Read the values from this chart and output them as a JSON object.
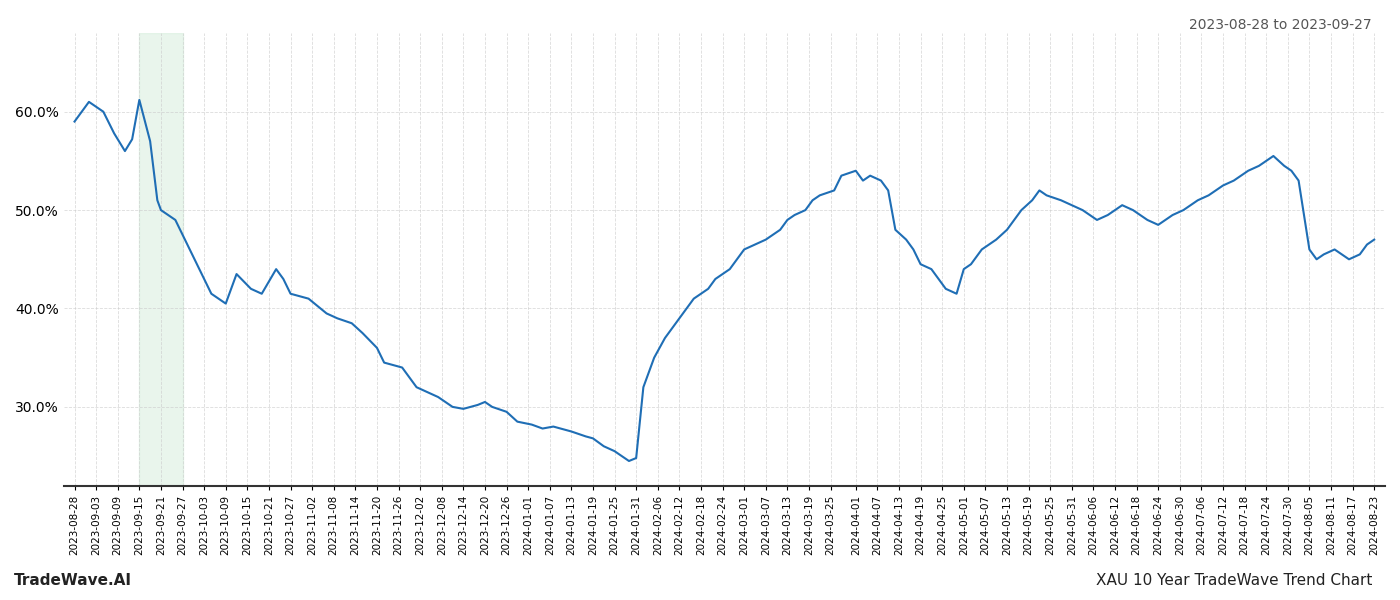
{
  "title_right": "2023-08-28 to 2023-09-27",
  "footer_left": "TradeWave.AI",
  "footer_right": "XAU 10 Year TradeWave Trend Chart",
  "line_color": "#1f6eb5",
  "line_width": 1.5,
  "shade_color": "#d4edda",
  "shade_alpha": 0.5,
  "shade_start": "2023-09-15",
  "shade_end": "2023-09-27",
  "ylim_min": 0.22,
  "ylim_max": 0.68,
  "yticks": [
    0.3,
    0.4,
    0.5,
    0.6
  ],
  "background_color": "#ffffff",
  "grid_color": "#cccccc",
  "dates": [
    "2023-08-28",
    "2023-09-01",
    "2023-09-05",
    "2023-09-08",
    "2023-09-11",
    "2023-09-13",
    "2023-09-15",
    "2023-09-18",
    "2023-09-20",
    "2023-09-21",
    "2023-09-25",
    "2023-09-29",
    "2023-10-03",
    "2023-10-05",
    "2023-10-09",
    "2023-10-12",
    "2023-10-16",
    "2023-10-19",
    "2023-10-23",
    "2023-10-25",
    "2023-10-27",
    "2023-11-01",
    "2023-11-06",
    "2023-11-09",
    "2023-11-13",
    "2023-11-16",
    "2023-11-20",
    "2023-11-22",
    "2023-11-27",
    "2023-12-01",
    "2023-12-04",
    "2023-12-07",
    "2023-12-11",
    "2023-12-14",
    "2023-12-18",
    "2023-12-20",
    "2023-12-22",
    "2023-12-26",
    "2023-12-29",
    "2024-01-02",
    "2024-01-05",
    "2024-01-08",
    "2024-01-10",
    "2024-01-13",
    "2024-01-17",
    "2024-01-19",
    "2024-01-22",
    "2024-01-25",
    "2024-01-29",
    "2024-01-31",
    "2024-02-02",
    "2024-02-05",
    "2024-02-08",
    "2024-02-12",
    "2024-02-14",
    "2024-02-16",
    "2024-02-20",
    "2024-02-22",
    "2024-02-26",
    "2024-02-28",
    "2024-03-01",
    "2024-03-04",
    "2024-03-07",
    "2024-03-11",
    "2024-03-13",
    "2024-03-15",
    "2024-03-18",
    "2024-03-20",
    "2024-03-22",
    "2024-03-26",
    "2024-03-28",
    "2024-04-01",
    "2024-04-03",
    "2024-04-05",
    "2024-04-08",
    "2024-04-10",
    "2024-04-12",
    "2024-04-15",
    "2024-04-17",
    "2024-04-19",
    "2024-04-22",
    "2024-04-24",
    "2024-04-26",
    "2024-04-29",
    "2024-05-01",
    "2024-05-03",
    "2024-05-06",
    "2024-05-08",
    "2024-05-10",
    "2024-05-13",
    "2024-05-15",
    "2024-05-17",
    "2024-05-20",
    "2024-05-22",
    "2024-05-24",
    "2024-05-28",
    "2024-05-31",
    "2024-06-03",
    "2024-06-05",
    "2024-06-07",
    "2024-06-10",
    "2024-06-12",
    "2024-06-14",
    "2024-06-17",
    "2024-06-19",
    "2024-06-21",
    "2024-06-24",
    "2024-06-26",
    "2024-06-28",
    "2024-07-01",
    "2024-07-03",
    "2024-07-05",
    "2024-07-08",
    "2024-07-10",
    "2024-07-12",
    "2024-07-15",
    "2024-07-17",
    "2024-07-19",
    "2024-07-22",
    "2024-07-24",
    "2024-07-26",
    "2024-07-29",
    "2024-07-31",
    "2024-08-02",
    "2024-08-05",
    "2024-08-07",
    "2024-08-09",
    "2024-08-12",
    "2024-08-14",
    "2024-08-16",
    "2024-08-19",
    "2024-08-21",
    "2024-08-23"
  ],
  "values": [
    0.59,
    0.61,
    0.6,
    0.578,
    0.56,
    0.572,
    0.612,
    0.57,
    0.51,
    0.5,
    0.49,
    0.46,
    0.43,
    0.415,
    0.405,
    0.435,
    0.42,
    0.415,
    0.44,
    0.43,
    0.415,
    0.41,
    0.395,
    0.39,
    0.385,
    0.375,
    0.36,
    0.345,
    0.34,
    0.32,
    0.315,
    0.31,
    0.3,
    0.298,
    0.302,
    0.305,
    0.3,
    0.295,
    0.285,
    0.282,
    0.278,
    0.28,
    0.278,
    0.275,
    0.27,
    0.268,
    0.26,
    0.255,
    0.245,
    0.248,
    0.32,
    0.35,
    0.37,
    0.39,
    0.4,
    0.41,
    0.42,
    0.43,
    0.44,
    0.45,
    0.46,
    0.465,
    0.47,
    0.48,
    0.49,
    0.495,
    0.5,
    0.51,
    0.515,
    0.52,
    0.535,
    0.54,
    0.53,
    0.535,
    0.53,
    0.52,
    0.48,
    0.47,
    0.46,
    0.445,
    0.44,
    0.43,
    0.42,
    0.415,
    0.44,
    0.445,
    0.46,
    0.465,
    0.47,
    0.48,
    0.49,
    0.5,
    0.51,
    0.52,
    0.515,
    0.51,
    0.505,
    0.5,
    0.495,
    0.49,
    0.495,
    0.5,
    0.505,
    0.5,
    0.495,
    0.49,
    0.485,
    0.49,
    0.495,
    0.5,
    0.505,
    0.51,
    0.515,
    0.52,
    0.525,
    0.53,
    0.535,
    0.54,
    0.545,
    0.55,
    0.555,
    0.545,
    0.54,
    0.53,
    0.46,
    0.45,
    0.455,
    0.46,
    0.455,
    0.45,
    0.455,
    0.465,
    0.47
  ],
  "xtick_labels": [
    "2023-08-28",
    "2023-09-03",
    "2023-09-09",
    "2023-09-15",
    "2023-09-21",
    "2023-09-27",
    "2023-10-03",
    "2023-10-09",
    "2023-10-15",
    "2023-10-21",
    "2023-10-27",
    "2023-11-02",
    "2023-11-08",
    "2023-11-14",
    "2023-11-20",
    "2023-11-26",
    "2023-12-02",
    "2023-12-08",
    "2023-12-14",
    "2023-12-20",
    "2023-12-26",
    "2024-01-01",
    "2024-01-07",
    "2024-01-13",
    "2024-01-19",
    "2024-01-25",
    "2024-01-31",
    "2024-02-06",
    "2024-02-12",
    "2024-02-18",
    "2024-02-24",
    "2024-03-01",
    "2024-03-07",
    "2024-03-13",
    "2024-03-19",
    "2024-03-25",
    "2024-04-01",
    "2024-04-07",
    "2024-04-13",
    "2024-04-19",
    "2024-04-25",
    "2024-05-01",
    "2024-05-07",
    "2024-05-13",
    "2024-05-19",
    "2024-05-25",
    "2024-05-31",
    "2024-06-06",
    "2024-06-12",
    "2024-06-18",
    "2024-06-24",
    "2024-06-30",
    "2024-07-06",
    "2024-07-12",
    "2024-07-18",
    "2024-07-24",
    "2024-07-30",
    "2024-08-05",
    "2024-08-11",
    "2024-08-17",
    "2024-08-23"
  ]
}
